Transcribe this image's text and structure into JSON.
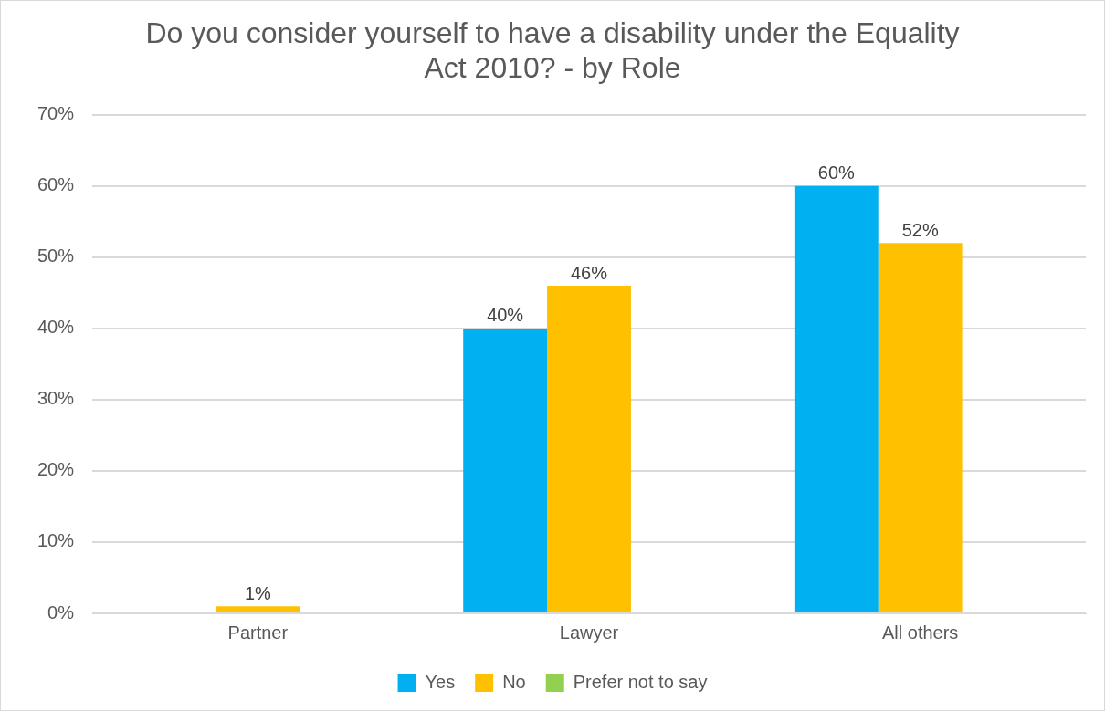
{
  "chart_data": {
    "type": "bar",
    "title": "Do you consider yourself to have a disability under the Equality Act 2010? - by Role",
    "categories": [
      "Partner",
      "Lawyer",
      "All others"
    ],
    "series": [
      {
        "name": "Yes",
        "color": "#00b0f0",
        "values": [
          0,
          40,
          60
        ],
        "value_labels": [
          null,
          "40%",
          "60%"
        ]
      },
      {
        "name": "No",
        "color": "#ffc000",
        "values": [
          1,
          46,
          52
        ],
        "value_labels": [
          "1%",
          "46%",
          "52%"
        ]
      },
      {
        "name": "Prefer not to say",
        "color": "#92d050",
        "values": [
          0,
          0,
          0
        ],
        "value_labels": [
          null,
          null,
          null
        ]
      }
    ],
    "ylim": [
      0,
      70
    ],
    "yticks": [
      {
        "value": 0,
        "label": "0%"
      },
      {
        "value": 10,
        "label": "10%"
      },
      {
        "value": 20,
        "label": "20%"
      },
      {
        "value": 30,
        "label": "30%"
      },
      {
        "value": 40,
        "label": "40%"
      },
      {
        "value": 50,
        "label": "50%"
      },
      {
        "value": 60,
        "label": "60%"
      },
      {
        "value": 70,
        "label": "70%"
      }
    ],
    "grid": "y",
    "legend": "bottom"
  }
}
